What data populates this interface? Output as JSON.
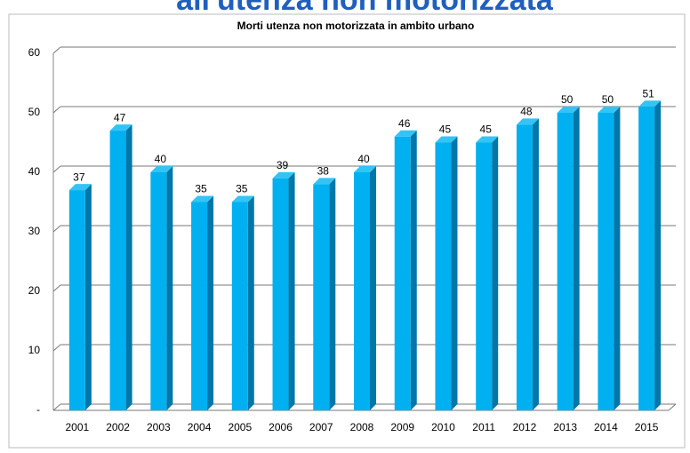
{
  "page_title": "all'utenza non motorizzata",
  "chart_data": {
    "type": "bar",
    "title": "Morti utenza non motorizzata in ambito urbano",
    "categories": [
      "2001",
      "2002",
      "2003",
      "2004",
      "2005",
      "2006",
      "2007",
      "2008",
      "2009",
      "2010",
      "2011",
      "2012",
      "2013",
      "2014",
      "2015"
    ],
    "values": [
      37,
      47,
      40,
      35,
      35,
      39,
      38,
      40,
      46,
      45,
      45,
      48,
      50,
      50,
      51
    ],
    "color": "#00b0f0",
    "ylim": [
      0,
      60
    ],
    "yticks": [
      {
        "value": 0,
        "label": "-"
      },
      10,
      20,
      30,
      40,
      50,
      60
    ],
    "grid": true
  }
}
